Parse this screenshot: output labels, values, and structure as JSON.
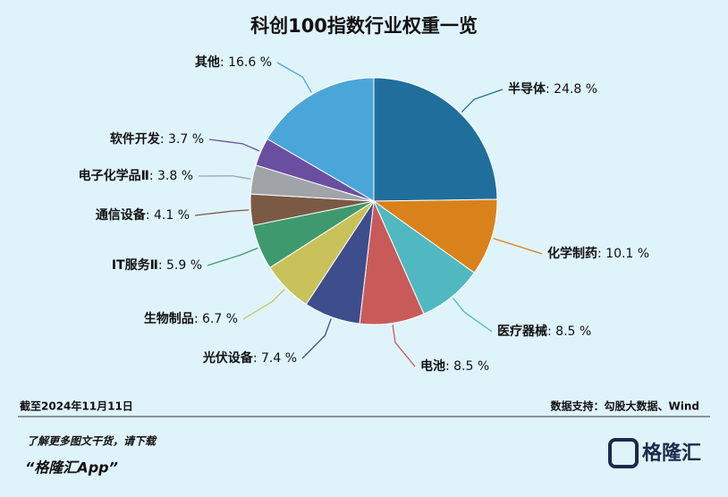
{
  "chart_data": {
    "type": "pie",
    "title": "科创100指数行业权重一览",
    "categories": [
      "半导体",
      "化学制药",
      "医疗器械",
      "电池",
      "光伏设备",
      "生物制品",
      "IT服务Ⅱ",
      "通信设备",
      "电子化学品Ⅱ",
      "软件开发",
      "其他"
    ],
    "values": [
      24.8,
      10.1,
      8.5,
      8.5,
      7.4,
      6.7,
      5.9,
      4.1,
      3.8,
      3.7,
      16.6
    ],
    "value_labels": [
      ": 24.8 %",
      ": 10.1 %",
      ": 8.5 %",
      ": 8.5 %",
      ": 7.4 %",
      ": 6.7 %",
      ": 5.9 %",
      ": 4.1 %",
      ": 3.8 %",
      ": 3.7 %",
      ": 16.6 %"
    ],
    "colors": [
      "#1f6e9c",
      "#d9821c",
      "#4fb8c0",
      "#c85a5a",
      "#3e4e8c",
      "#c9c25a",
      "#3e9a6e",
      "#7a5a44",
      "#a0a4a8",
      "#6a4fa0",
      "#4aa6d9"
    ],
    "date_note": "截至2024年11月11日",
    "source": "数据支持：勾股大数据、Wind"
  },
  "footer": {
    "line1": "了解更多图文干货，请下载",
    "line2": "“格隆汇App”",
    "logo": "格隆汇"
  }
}
